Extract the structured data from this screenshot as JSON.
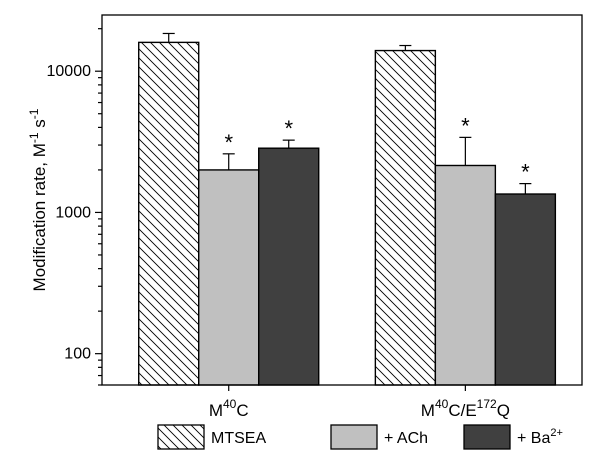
{
  "chart_data": {
    "type": "bar",
    "scale": "log",
    "ylim": [
      60,
      25000
    ],
    "ylabel": {
      "main": "Modification rate, M",
      "sup1": "-1",
      "mid": " s",
      "sup2": "-1"
    },
    "yticks": [
      {
        "value": 100,
        "label": "100"
      },
      {
        "value": 1000,
        "label": "1000"
      },
      {
        "value": 10000,
        "label": "10000"
      }
    ],
    "categories": [
      {
        "parts": [
          {
            "t": "M"
          },
          {
            "t": "40",
            "sup": true
          },
          {
            "t": "C"
          }
        ]
      },
      {
        "parts": [
          {
            "t": "M"
          },
          {
            "t": "40",
            "sup": true
          },
          {
            "t": "C/E"
          },
          {
            "t": "172",
            "sup": true
          },
          {
            "t": "Q"
          }
        ]
      }
    ],
    "series": [
      {
        "name": "MTSEA",
        "legend_parts": [
          {
            "t": "MTSEA"
          }
        ],
        "fill": "hatch",
        "color": "#ffffff",
        "values": [
          16000,
          14000
        ],
        "errors": [
          18500,
          15200
        ],
        "significant": [
          false,
          false
        ]
      },
      {
        "name": "+ ACh",
        "legend_parts": [
          {
            "t": "+ ACh"
          }
        ],
        "fill": "solid",
        "color": "#c0c0c0",
        "values": [
          2000,
          2150
        ],
        "errors": [
          2600,
          3400
        ],
        "significant": [
          true,
          true
        ]
      },
      {
        "name": "+ Ba2+",
        "legend_parts": [
          {
            "t": "+ Ba"
          },
          {
            "t": "2+",
            "sup": true
          }
        ],
        "fill": "solid",
        "color": "#404040",
        "values": [
          2850,
          1350
        ],
        "errors": [
          3250,
          1600
        ],
        "significant": [
          true,
          true
        ]
      }
    ],
    "significance_marker": "*"
  }
}
